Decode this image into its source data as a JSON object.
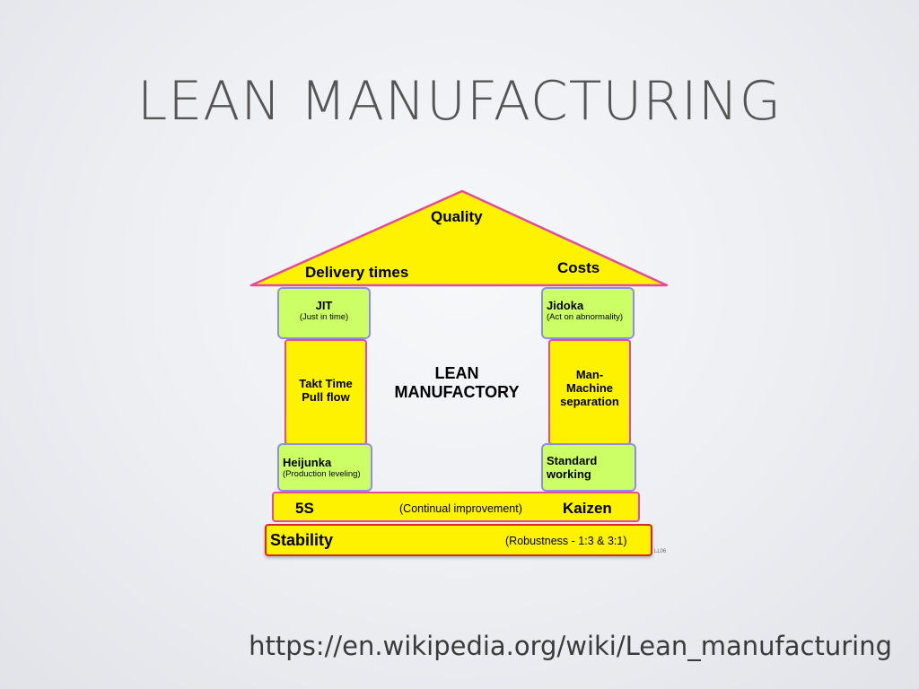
{
  "slide": {
    "title": "LEAN MANUFACTURING",
    "source_url": "https://en.wikipedia.org/wiki/Lean_manufacturing"
  },
  "diagram": {
    "roof": {
      "top": "Quality",
      "left": "Delivery times",
      "right": "Costs"
    },
    "center": {
      "line1": "LEAN",
      "line2": "MANUFACTORY"
    },
    "left_pillar": {
      "top_title": "JIT",
      "top_sub": "(Just in time)",
      "middle_line1": "Takt Time",
      "middle_line2": "Pull flow",
      "bottom_title": "Heijunka",
      "bottom_sub": "(Production leveling)"
    },
    "right_pillar": {
      "top_title": "Jidoka",
      "top_sub": "(Act on abnormality)",
      "middle_line1": "Man-",
      "middle_line2": "Machine",
      "middle_line3": "separation",
      "bottom_line1": "Standard",
      "bottom_line2": "working"
    },
    "foundation": {
      "left": "5S",
      "middle": "(Continual improvement)",
      "right": "Kaizen"
    },
    "base": {
      "left": "Stability",
      "right": "(Robustness - 1:3 & 3:1)"
    },
    "watermark": "LL06"
  },
  "colors": {
    "yellow": "#fff200",
    "green": "#ccff66",
    "pink_border": "#e04e9a",
    "violet_border": "#8e8ee6",
    "red_border": "#e0232a"
  }
}
